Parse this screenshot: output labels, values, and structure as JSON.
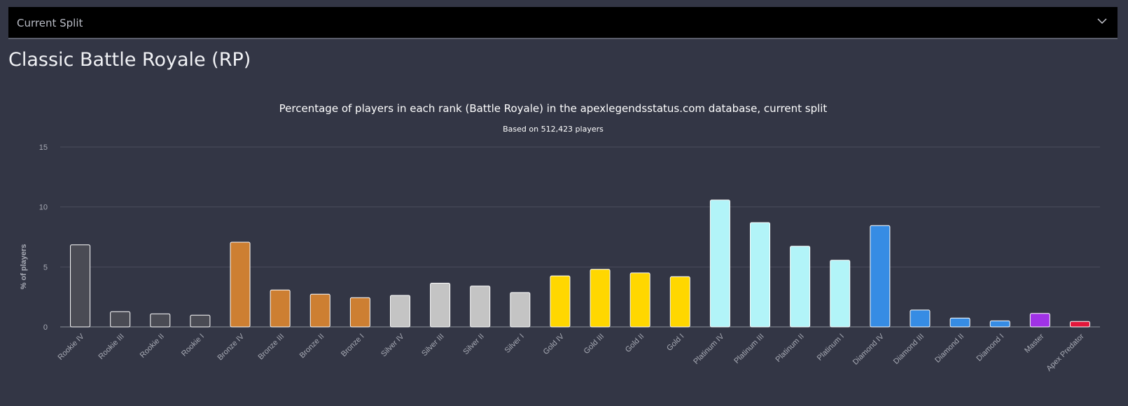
{
  "dropdown": {
    "selected": "Current Split",
    "icon": "chevron-down-icon"
  },
  "page_title": "Classic Battle Royale (RP)",
  "chart_data": {
    "type": "bar",
    "title": "Percentage of players in each rank (Battle Royale) in the apexlegendsstatus.com database, current split",
    "subtitle": "Based on 512,423 players",
    "xlabel": "",
    "ylabel": "% of players",
    "ylim": [
      0,
      15
    ],
    "yticks": [
      0,
      5,
      10,
      15
    ],
    "grid": true,
    "categories": [
      "Rookie IV",
      "Rookie III",
      "Rookie II",
      "Rookie I",
      "Bronze IV",
      "Bronze III",
      "Bronze II",
      "Bronze I",
      "Silver IV",
      "Silver III",
      "Silver II",
      "Silver I",
      "Gold IV",
      "Gold III",
      "Gold II",
      "Gold I",
      "Platinum IV",
      "Platinum III",
      "Platinum II",
      "Platinum I",
      "Diamond IV",
      "Diamond III",
      "Diamond II",
      "Diamond I",
      "Master",
      "Apex Predator"
    ],
    "values": [
      6.84,
      1.27,
      1.09,
      0.98,
      7.06,
      3.08,
      2.73,
      2.44,
      2.63,
      3.65,
      3.41,
      2.87,
      4.25,
      4.8,
      4.5,
      4.19,
      10.58,
      8.7,
      6.73,
      5.56,
      8.45,
      1.41,
      0.74,
      0.5,
      1.12,
      0.45
    ],
    "colors": [
      "#4a4b54",
      "#4a4b54",
      "#4a4b54",
      "#4a4b54",
      "#cd7f32",
      "#cd7f32",
      "#cd7f32",
      "#cd7f32",
      "#c4c4c4",
      "#c4c4c4",
      "#c4c4c4",
      "#c4c4c4",
      "#ffd700",
      "#ffd700",
      "#ffd700",
      "#ffd700",
      "#b2f4f8",
      "#b2f4f8",
      "#b2f4f8",
      "#b2f4f8",
      "#368ce4",
      "#368ce4",
      "#368ce4",
      "#368ce4",
      "#a032e6",
      "#e3173b"
    ]
  }
}
